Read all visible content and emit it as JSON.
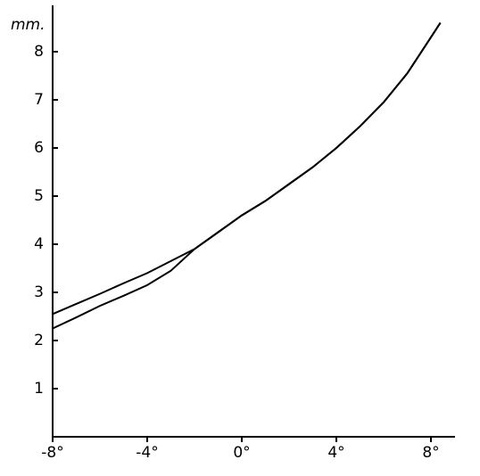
{
  "chart_data": {
    "type": "line",
    "y_label": "mm.",
    "x": [
      -8,
      -7,
      -6,
      -5,
      -4,
      -3,
      -2,
      -1,
      0,
      1,
      2,
      3,
      4,
      5,
      6,
      7,
      8,
      8.4
    ],
    "series": [
      {
        "color": "#000000",
        "values": [
          2.55,
          2.76,
          2.97,
          3.19,
          3.4,
          3.65,
          3.9,
          4.25,
          4.6,
          4.9,
          5.25,
          5.6,
          6.0,
          6.45,
          6.95,
          7.55,
          8.3,
          8.6
        ]
      },
      {
        "color": "#000000",
        "values": [
          2.25,
          2.48,
          2.72,
          2.93,
          3.15,
          3.45,
          3.9,
          4.25,
          4.6,
          4.9,
          5.25,
          5.6,
          6.0,
          6.45,
          6.95,
          7.55,
          8.3,
          8.6
        ]
      }
    ],
    "xlim": [
      -8,
      9
    ],
    "ylim": [
      0,
      8.9
    ],
    "xticks": [
      {
        "value": -8,
        "label": "-8°"
      },
      {
        "value": -4,
        "label": "-4°"
      },
      {
        "value": 0,
        "label": "0°"
      },
      {
        "value": 4,
        "label": "4°"
      },
      {
        "value": 8,
        "label": "8°"
      }
    ],
    "yticks": [
      1,
      2,
      3,
      4,
      5,
      6,
      7,
      8
    ],
    "grid": false
  }
}
